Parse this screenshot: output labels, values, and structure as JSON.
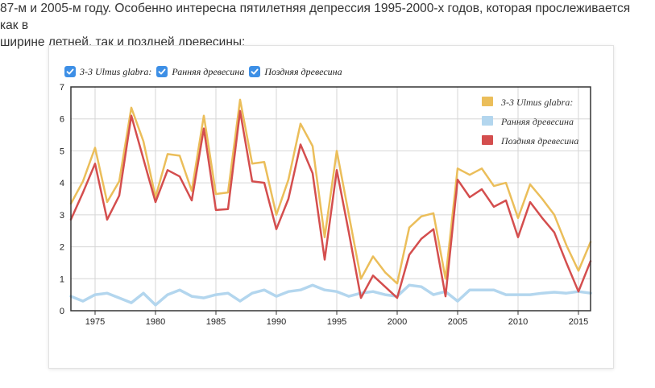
{
  "article": {
    "intro_line1": "87-м и 2005-м году. Особенно интересна пятилетняя депрессия 1995-2000-х годов, которая прослеживается как в",
    "intro_line2": "ширине летней, так и поздней древесины:"
  },
  "toggles": [
    {
      "label": "3-3 Ulmus glabra:",
      "checked": true
    },
    {
      "label": "Ранняя древесина",
      "checked": true
    },
    {
      "label": "Поздняя древесина",
      "checked": true
    }
  ],
  "chart_data": {
    "type": "line",
    "xlim": [
      1973,
      2016
    ],
    "ylim": [
      0,
      7
    ],
    "x_ticks": [
      1975,
      1980,
      1985,
      1990,
      1995,
      2000,
      2005,
      2010,
      2015
    ],
    "y_ticks": [
      0,
      1,
      2,
      3,
      4,
      5,
      6,
      7
    ],
    "grid": true,
    "legend_position": "top-right",
    "x": [
      1973,
      1974,
      1975,
      1976,
      1977,
      1978,
      1979,
      1980,
      1981,
      1982,
      1983,
      1984,
      1985,
      1986,
      1987,
      1988,
      1989,
      1990,
      1991,
      1992,
      1993,
      1994,
      1995,
      1996,
      1997,
      1998,
      1999,
      2000,
      2001,
      2002,
      2003,
      2004,
      2005,
      2006,
      2007,
      2008,
      2009,
      2010,
      2011,
      2012,
      2013,
      2014,
      2015,
      2016
    ],
    "series": [
      {
        "name": "3-3 Ulmus glabra:",
        "color": "#ebbe5a",
        "values": [
          3.35,
          4.05,
          5.1,
          3.4,
          4.05,
          6.35,
          5.3,
          3.55,
          4.9,
          4.85,
          3.75,
          6.1,
          3.65,
          3.7,
          6.6,
          4.6,
          4.65,
          3.0,
          4.1,
          5.85,
          5.15,
          2.3,
          5.0,
          3.0,
          1.0,
          1.7,
          1.2,
          0.85,
          2.6,
          2.95,
          3.05,
          1.0,
          4.45,
          4.25,
          4.45,
          3.9,
          4.0,
          2.9,
          3.95,
          3.5,
          3.0,
          2.05,
          1.25,
          2.15
        ]
      },
      {
        "name": "Ранняя древесина",
        "color": "#b3d6ee",
        "values": [
          0.45,
          0.3,
          0.5,
          0.55,
          0.4,
          0.25,
          0.55,
          0.18,
          0.5,
          0.65,
          0.45,
          0.4,
          0.5,
          0.55,
          0.3,
          0.55,
          0.65,
          0.45,
          0.6,
          0.65,
          0.8,
          0.65,
          0.6,
          0.45,
          0.55,
          0.6,
          0.5,
          0.45,
          0.8,
          0.75,
          0.5,
          0.6,
          0.3,
          0.65,
          0.65,
          0.65,
          0.5,
          0.5,
          0.5,
          0.55,
          0.58,
          0.55,
          0.6,
          0.55
        ]
      },
      {
        "name": "Поздняя древесина",
        "color": "#d44e4e",
        "values": [
          2.85,
          3.7,
          4.6,
          2.85,
          3.6,
          6.1,
          4.75,
          3.4,
          4.4,
          4.2,
          3.45,
          5.7,
          3.15,
          3.18,
          6.25,
          4.05,
          4.0,
          2.55,
          3.5,
          5.2,
          4.3,
          1.6,
          4.4,
          2.45,
          0.4,
          1.1,
          0.75,
          0.4,
          1.75,
          2.25,
          2.55,
          0.45,
          4.1,
          3.55,
          3.8,
          3.25,
          3.45,
          2.3,
          3.4,
          2.9,
          2.45,
          1.5,
          0.6,
          1.55
        ]
      }
    ]
  }
}
